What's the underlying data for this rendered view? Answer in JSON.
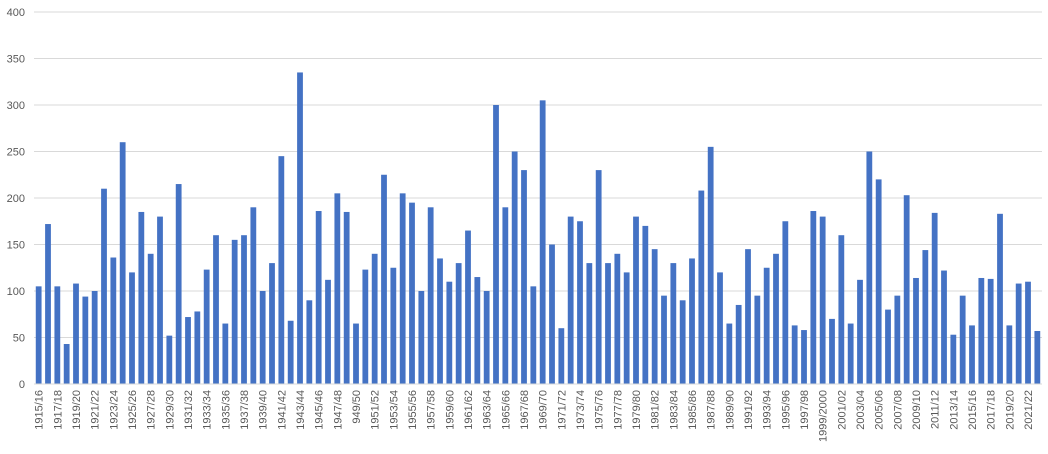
{
  "chart_data": {
    "type": "bar",
    "title": "",
    "xlabel": "",
    "ylabel": "",
    "ylim": [
      0,
      400
    ],
    "yticks": [
      0,
      50,
      100,
      150,
      200,
      250,
      300,
      350,
      400
    ],
    "grid": true,
    "legend": "none",
    "bar_color": "#4472C4",
    "grid_color": "#D9D9D9",
    "categories": [
      "1915/16",
      "1916/17",
      "1917/18",
      "1918/19",
      "1919/20",
      "1920/21",
      "1921/22",
      "1922/23",
      "1923/24",
      "1924/25",
      "1925/26",
      "1926/27",
      "1927/28",
      "1928/29",
      "1929/30",
      "1930/31",
      "1931/32",
      "1932/33",
      "1933/34",
      "1934/35",
      "1935/36",
      "1936/37",
      "1937/38",
      "1938/39",
      "1939/40",
      "1940/41",
      "1941/42",
      "1942/43",
      "1943/44",
      "1944/45",
      "1945/46",
      "1946/47",
      "1947/48",
      "1948/49",
      "949/50",
      "1950/51",
      "1951/52",
      "1952/53",
      "1953/54",
      "1954/55",
      "1955/56",
      "1956/57",
      "1957/58",
      "1958/59",
      "1959/60",
      "1960/61",
      "1961/62",
      "1962/63",
      "1963/64",
      "1964/65",
      "1965/66",
      "1966/67",
      "1967/68",
      "1968/69",
      "1969/70",
      "1970/71",
      "1971/72",
      "1972/73",
      "1973/74",
      "1974/75",
      "1975/76",
      "1976/77",
      "1977/78",
      "1978/79",
      "1979/80",
      "1980/81",
      "1981/82",
      "1982/83",
      "1983/84",
      "1984/85",
      "1985/86",
      "1986/87",
      "1987/88",
      "1988/89",
      "1989/90",
      "1990/91",
      "1991/92",
      "1992/93",
      "1993/94",
      "1994/95",
      "1995/96",
      "1996/97",
      "1997/98",
      "1998/99",
      "1999/2000",
      "2000/01",
      "2001/02",
      "2002/03",
      "2003/04",
      "2004/05",
      "2005/06",
      "2006/07",
      "2007/08",
      "2008/09",
      "2009/10",
      "2010/11",
      "2011/12",
      "2012/13",
      "2013/14",
      "2014/15",
      "2015/16",
      "2016/17",
      "2017/18",
      "2018/19",
      "2019/20",
      "2020/21",
      "2021/22",
      "2022/23"
    ],
    "tick_labels_shown": [
      "1915/16",
      "1917/18",
      "1919/20",
      "1921/22",
      "1923/24",
      "1925/26",
      "1927/28",
      "1929/30",
      "1931/32",
      "1933/34",
      "1935/36",
      "1937/38",
      "1939/40",
      "1941/42",
      "1943/44",
      "1945/46",
      "1947/48",
      "949/50",
      "1951/52",
      "1953/54",
      "1955/56",
      "1957/58",
      "1959/60",
      "1961/62",
      "1963/64",
      "1965/66",
      "1967/68",
      "1969/70",
      "1971/72",
      "1973/74",
      "1975/76",
      "1977/78",
      "1979/80",
      "1981/82",
      "1983/84",
      "1985/86",
      "1987/88",
      "1989/90",
      "1991/92",
      "1993/94",
      "1995/96",
      "1997/98",
      "1999/2000",
      "2001/02",
      "2003/04",
      "2005/06",
      "2007/08",
      "2009/10",
      "2011/12",
      "2013/14",
      "2015/16",
      "2017/18",
      "2019/20",
      "2021/22"
    ],
    "values": [
      105,
      172,
      105,
      43,
      108,
      94,
      100,
      210,
      136,
      260,
      120,
      185,
      140,
      180,
      52,
      215,
      72,
      78,
      123,
      160,
      65,
      155,
      160,
      190,
      100,
      130,
      245,
      68,
      335,
      90,
      186,
      112,
      205,
      185,
      65,
      123,
      140,
      225,
      125,
      205,
      195,
      100,
      190,
      135,
      110,
      130,
      165,
      115,
      100,
      300,
      190,
      250,
      230,
      105,
      305,
      150,
      60,
      180,
      175,
      130,
      230,
      130,
      140,
      120,
      180,
      170,
      145,
      95,
      130,
      90,
      135,
      208,
      255,
      120,
      65,
      85,
      145,
      95,
      125,
      140,
      175,
      63,
      58,
      186,
      180,
      70,
      160,
      65,
      112,
      250,
      220,
      80,
      95,
      203,
      114,
      144,
      184,
      122,
      53,
      95,
      63,
      114,
      113,
      183,
      63,
      108,
      110,
      57
    ]
  }
}
